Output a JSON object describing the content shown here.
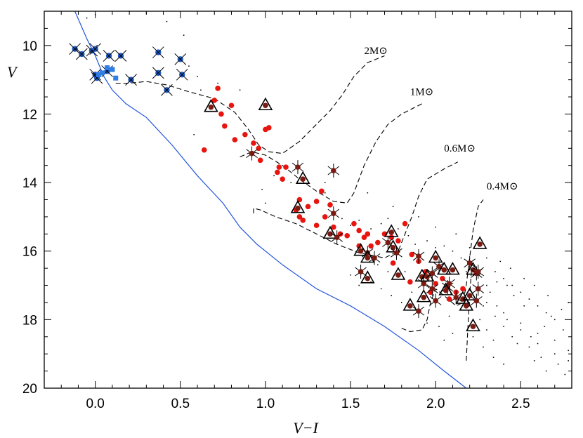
{
  "chart_data": {
    "type": "scatter",
    "title": "",
    "xlabel": "V−I",
    "ylabel": "V",
    "xlim": [
      -0.3,
      2.8
    ],
    "ylim": [
      20,
      9
    ],
    "y_inverted": true,
    "grid": false,
    "x_ticks": [
      {
        "value": 0.0,
        "label": "0.0"
      },
      {
        "value": 0.5,
        "label": "0.5"
      },
      {
        "value": 1.0,
        "label": "1.0"
      },
      {
        "value": 1.5,
        "label": "1.5"
      },
      {
        "value": 2.0,
        "label": "2.0"
      },
      {
        "value": 2.5,
        "label": "2.5"
      }
    ],
    "y_ticks": [
      {
        "value": 10,
        "label": "10"
      },
      {
        "value": 12,
        "label": "12"
      },
      {
        "value": 14,
        "label": "14"
      },
      {
        "value": 16,
        "label": "16"
      },
      {
        "value": 18,
        "label": "18"
      },
      {
        "value": 20,
        "label": "20"
      }
    ],
    "colors": {
      "field_dots": "#000000",
      "red_points": "#e8140f",
      "blue_points": "#1e5bc6",
      "blue_squares": "#2f7ee8",
      "zams_line": "#2255dd",
      "dark_points": "#7a1a12",
      "tracks": "#000000"
    },
    "track_labels": [
      {
        "text": "2M⊙",
        "x": 1.58,
        "y": 10.25
      },
      {
        "text": "1M⊙",
        "x": 1.85,
        "y": 11.45
      },
      {
        "text": "0.6M⊙",
        "x": 2.05,
        "y": 13.1
      },
      {
        "text": "0.4M⊙",
        "x": 2.3,
        "y": 14.2
      }
    ],
    "zams_curve": [
      [
        -0.12,
        9.0
      ],
      [
        -0.05,
        9.8
      ],
      [
        0.0,
        10.3
      ],
      [
        0.05,
        10.9
      ],
      [
        0.1,
        11.3
      ],
      [
        0.18,
        11.7
      ],
      [
        0.3,
        12.1
      ],
      [
        0.45,
        12.9
      ],
      [
        0.6,
        13.8
      ],
      [
        0.75,
        14.6
      ],
      [
        0.85,
        15.3
      ],
      [
        0.95,
        15.8
      ],
      [
        1.1,
        16.4
      ],
      [
        1.3,
        17.1
      ],
      [
        1.5,
        17.6
      ],
      [
        1.7,
        18.2
      ],
      [
        1.9,
        18.9
      ],
      [
        2.05,
        19.5
      ],
      [
        2.18,
        20.0
      ]
    ],
    "tracks": [
      {
        "name": "2M⊙",
        "points": [
          [
            0.12,
            11.1
          ],
          [
            0.2,
            11.1
          ],
          [
            0.3,
            11.05
          ],
          [
            0.42,
            11.15
          ],
          [
            0.55,
            11.35
          ],
          [
            0.7,
            11.55
          ],
          [
            0.82,
            11.95
          ],
          [
            0.9,
            12.45
          ],
          [
            0.96,
            12.9
          ],
          [
            1.02,
            13.1
          ],
          [
            1.1,
            13.15
          ],
          [
            1.2,
            12.8
          ],
          [
            1.3,
            12.3
          ],
          [
            1.38,
            11.9
          ],
          [
            1.45,
            11.45
          ],
          [
            1.52,
            10.9
          ],
          [
            1.6,
            10.5
          ],
          [
            1.7,
            10.3
          ]
        ]
      },
      {
        "name": "1M⊙",
        "points": [
          [
            0.85,
            13.25
          ],
          [
            0.92,
            13.1
          ],
          [
            1.0,
            13.2
          ],
          [
            1.1,
            13.5
          ],
          [
            1.2,
            13.9
          ],
          [
            1.3,
            14.25
          ],
          [
            1.4,
            14.55
          ],
          [
            1.48,
            14.6
          ],
          [
            1.52,
            14.3
          ],
          [
            1.58,
            13.5
          ],
          [
            1.65,
            12.8
          ],
          [
            1.72,
            12.3
          ],
          [
            1.8,
            12.0
          ],
          [
            1.92,
            11.7
          ]
        ]
      },
      {
        "name": "0.6M⊙",
        "points": [
          [
            0.93,
            14.9
          ],
          [
            0.93,
            14.75
          ],
          [
            0.97,
            14.8
          ],
          [
            1.06,
            15.0
          ],
          [
            1.18,
            15.2
          ],
          [
            1.3,
            15.5
          ],
          [
            1.42,
            15.8
          ],
          [
            1.55,
            16.05
          ],
          [
            1.7,
            16.2
          ],
          [
            1.78,
            16.0
          ],
          [
            1.82,
            15.5
          ],
          [
            1.86,
            15.0
          ],
          [
            1.9,
            14.4
          ],
          [
            1.95,
            13.9
          ],
          [
            2.05,
            13.6
          ],
          [
            2.13,
            13.4
          ]
        ]
      },
      {
        "name": "0.4M⊙",
        "points": [
          [
            1.8,
            18.25
          ],
          [
            1.85,
            18.35
          ],
          [
            1.92,
            18.3
          ],
          [
            1.95,
            18.0
          ],
          [
            1.97,
            17.5
          ],
          [
            2.0,
            17.1
          ],
          [
            2.05,
            17.3
          ],
          [
            2.12,
            17.6
          ],
          [
            2.16,
            17.5
          ],
          [
            2.18,
            17.0
          ],
          [
            2.2,
            16.2
          ],
          [
            2.22,
            15.4
          ],
          [
            2.25,
            14.7
          ],
          [
            2.28,
            14.5
          ]
        ]
      },
      {
        "name": "0.4M⊙-lower",
        "points": [
          [
            2.18,
            19.2
          ],
          [
            2.19,
            18.2
          ],
          [
            2.2,
            17.3
          ],
          [
            2.21,
            16.6
          ]
        ]
      }
    ],
    "series": [
      {
        "values": [
          [
            -0.12,
            10.1
          ],
          [
            -0.08,
            10.25
          ],
          [
            -0.02,
            10.15
          ],
          [
            0.0,
            10.1
          ],
          [
            0.08,
            10.3
          ],
          [
            0.15,
            10.3
          ],
          [
            0.37,
            10.2
          ],
          [
            0.5,
            10.4
          ],
          [
            0.0,
            10.85
          ],
          [
            0.07,
            10.75
          ],
          [
            0.21,
            11.0
          ],
          [
            0.37,
            10.8
          ],
          [
            0.42,
            11.3
          ],
          [
            0.51,
            10.85
          ],
          [
            0.01,
            10.95
          ]
        ]
      },
      {
        "values": [
          [
            0.04,
            10.8
          ],
          [
            0.07,
            10.65
          ],
          [
            0.1,
            10.7
          ],
          [
            0.12,
            10.95
          ],
          [
            0.02,
            10.85
          ]
        ]
      },
      {
        "values": [
          [
            0.64,
            13.05
          ],
          [
            0.7,
            11.6
          ],
          [
            0.72,
            11.25
          ],
          [
            0.74,
            12.0
          ],
          [
            0.76,
            12.35
          ],
          [
            0.8,
            11.75
          ],
          [
            0.82,
            12.75
          ],
          [
            0.88,
            12.6
          ],
          [
            0.93,
            12.85
          ],
          [
            0.96,
            13.0
          ],
          [
            0.97,
            13.35
          ],
          [
            1.0,
            12.45
          ],
          [
            1.02,
            12.4
          ],
          [
            1.07,
            13.7
          ],
          [
            1.08,
            13.55
          ],
          [
            1.1,
            13.9
          ],
          [
            1.12,
            13.55
          ],
          [
            1.18,
            14.8
          ],
          [
            1.2,
            14.5
          ],
          [
            1.22,
            15.1
          ],
          [
            1.25,
            14.7
          ],
          [
            1.3,
            14.55
          ],
          [
            1.33,
            14.25
          ],
          [
            1.35,
            15.0
          ],
          [
            1.38,
            14.65
          ],
          [
            1.4,
            15.3
          ],
          [
            1.44,
            15.5
          ],
          [
            1.48,
            15.55
          ],
          [
            1.52,
            15.2
          ],
          [
            1.55,
            15.4
          ],
          [
            1.58,
            15.6
          ],
          [
            1.6,
            15.5
          ],
          [
            1.62,
            15.85
          ],
          [
            1.66,
            15.75
          ],
          [
            1.7,
            15.5
          ],
          [
            1.74,
            15.6
          ],
          [
            1.78,
            15.7
          ],
          [
            1.82,
            15.2
          ],
          [
            1.86,
            16.1
          ],
          [
            1.9,
            16.3
          ],
          [
            1.94,
            16.6
          ],
          [
            1.97,
            17.2
          ],
          [
            2.0,
            16.95
          ],
          [
            2.04,
            16.8
          ],
          [
            2.08,
            17.4
          ],
          [
            2.12,
            17.2
          ],
          [
            2.16,
            17.1
          ],
          [
            1.2,
            15.0
          ],
          [
            1.3,
            15.25
          ],
          [
            1.55,
            15.85
          ],
          [
            1.75,
            16.35
          ],
          [
            1.85,
            16.9
          ]
        ]
      },
      {
        "values": [
          [
            0.68,
            11.8
          ],
          [
            0.92,
            13.15
          ],
          [
            1.0,
            11.75
          ],
          [
            1.19,
            13.55
          ],
          [
            1.22,
            13.9
          ],
          [
            1.4,
            13.65
          ],
          [
            1.19,
            14.75
          ],
          [
            1.4,
            14.9
          ],
          [
            1.38,
            15.5
          ],
          [
            1.42,
            15.6
          ],
          [
            1.56,
            16.0
          ],
          [
            1.6,
            16.05
          ],
          [
            1.6,
            16.2
          ],
          [
            1.64,
            16.2
          ],
          [
            1.74,
            15.45
          ],
          [
            1.72,
            15.75
          ],
          [
            1.75,
            15.9
          ],
          [
            1.77,
            16.05
          ],
          [
            1.78,
            16.7
          ],
          [
            1.56,
            16.6
          ],
          [
            1.6,
            16.8
          ],
          [
            1.9,
            16.15
          ],
          [
            1.92,
            16.75
          ],
          [
            1.93,
            16.95
          ],
          [
            1.95,
            16.75
          ],
          [
            1.98,
            17.1
          ],
          [
            2.0,
            16.2
          ],
          [
            2.02,
            16.45
          ],
          [
            2.05,
            16.55
          ],
          [
            2.07,
            17.05
          ],
          [
            2.1,
            16.55
          ],
          [
            2.08,
            16.95
          ],
          [
            1.93,
            17.35
          ],
          [
            2.0,
            17.45
          ],
          [
            2.06,
            17.15
          ],
          [
            2.12,
            17.35
          ],
          [
            2.16,
            17.4
          ],
          [
            2.2,
            16.35
          ],
          [
            2.22,
            16.55
          ],
          [
            2.24,
            16.65
          ],
          [
            2.26,
            15.8
          ],
          [
            2.25,
            16.6
          ],
          [
            2.2,
            17.3
          ],
          [
            2.24,
            17.45
          ],
          [
            1.85,
            17.6
          ],
          [
            1.9,
            17.75
          ],
          [
            2.22,
            18.2
          ],
          [
            2.25,
            17.1
          ],
          [
            2.18,
            17.6
          ],
          [
            1.98,
            16.65
          ]
        ]
      }
    ],
    "field_stars": [
      [
        1.45,
        15.05
      ],
      [
        1.5,
        15.25
      ],
      [
        1.55,
        15.1
      ],
      [
        1.62,
        15.35
      ],
      [
        1.68,
        15.2
      ],
      [
        1.72,
        15.05
      ],
      [
        1.78,
        15.35
      ],
      [
        1.84,
        15.55
      ],
      [
        1.88,
        15.8
      ],
      [
        1.95,
        15.7
      ],
      [
        2.0,
        15.9
      ],
      [
        2.05,
        15.85
      ],
      [
        2.1,
        16.0
      ],
      [
        2.15,
        16.2
      ],
      [
        2.2,
        15.9
      ],
      [
        2.3,
        16.2
      ],
      [
        2.35,
        16.6
      ],
      [
        2.4,
        16.8
      ],
      [
        2.45,
        17.0
      ],
      [
        2.5,
        17.2
      ],
      [
        2.55,
        17.4
      ],
      [
        2.6,
        17.6
      ],
      [
        2.65,
        17.8
      ],
      [
        2.7,
        18.0
      ],
      [
        2.75,
        18.3
      ],
      [
        2.4,
        17.8
      ],
      [
        2.5,
        18.1
      ],
      [
        2.6,
        18.4
      ],
      [
        2.7,
        18.6
      ],
      [
        2.78,
        18.9
      ],
      [
        2.3,
        17.5
      ],
      [
        2.35,
        17.9
      ],
      [
        2.45,
        18.5
      ],
      [
        2.55,
        18.8
      ],
      [
        2.62,
        19.1
      ],
      [
        2.72,
        19.3
      ],
      [
        2.76,
        19.6
      ],
      [
        2.65,
        19.5
      ],
      [
        2.58,
        19.2
      ],
      [
        2.52,
        17.6
      ],
      [
        2.46,
        17.3
      ],
      [
        2.42,
        17.0
      ],
      [
        2.36,
        16.9
      ],
      [
        2.32,
        17.2
      ],
      [
        2.28,
        17.6
      ],
      [
        2.26,
        18.0
      ],
      [
        2.3,
        18.3
      ],
      [
        2.34,
        18.6
      ],
      [
        2.4,
        18.2
      ],
      [
        2.48,
        18.7
      ],
      [
        2.56,
        18.5
      ],
      [
        2.64,
        18.2
      ],
      [
        2.68,
        17.9
      ],
      [
        2.74,
        17.7
      ],
      [
        2.78,
        17.5
      ],
      [
        2.66,
        17.3
      ],
      [
        2.58,
        17.0
      ],
      [
        2.52,
        16.8
      ],
      [
        2.44,
        16.5
      ],
      [
        2.38,
        16.3
      ],
      [
        1.5,
        16.7
      ],
      [
        1.55,
        17.0
      ],
      [
        1.62,
        16.9
      ],
      [
        1.68,
        17.1
      ],
      [
        1.74,
        17.3
      ],
      [
        1.8,
        17.5
      ],
      [
        1.86,
        17.2
      ],
      [
        1.82,
        16.6
      ],
      [
        1.66,
        16.4
      ],
      [
        1.72,
        16.6
      ],
      [
        1.95,
        18.1
      ],
      [
        2.02,
        18.2
      ],
      [
        2.08,
        17.9
      ],
      [
        2.1,
        18.4
      ],
      [
        2.05,
        18.6
      ],
      [
        1.3,
        14.5
      ],
      [
        1.35,
        14.3
      ],
      [
        1.15,
        14.0
      ],
      [
        1.05,
        13.8
      ],
      [
        0.98,
        14.2
      ],
      [
        1.0,
        14.6
      ],
      [
        0.55,
        10.6
      ],
      [
        0.6,
        10.9
      ],
      [
        0.62,
        11.3
      ],
      [
        0.72,
        11.1
      ],
      [
        0.2,
        9.0
      ],
      [
        0.3,
        9.05
      ],
      [
        0.42,
        9.3
      ],
      [
        0.52,
        9.7
      ],
      [
        0.0,
        9.1
      ],
      [
        -0.05,
        9.2
      ],
      [
        0.58,
        12.6
      ],
      [
        0.85,
        11.3
      ],
      [
        1.35,
        14.0
      ],
      [
        1.6,
        14.3
      ],
      [
        1.75,
        14.7
      ],
      [
        1.9,
        15.0
      ],
      [
        2.0,
        15.3
      ],
      [
        2.12,
        15.5
      ],
      [
        2.18,
        16.6
      ],
      [
        2.3,
        17.0
      ],
      [
        2.36,
        17.6
      ],
      [
        2.42,
        18.0
      ],
      [
        2.5,
        18.3
      ],
      [
        2.6,
        18.7
      ],
      [
        2.7,
        19.0
      ],
      [
        2.78,
        19.2
      ],
      [
        2.22,
        18.5
      ],
      [
        2.28,
        18.8
      ],
      [
        2.34,
        19.1
      ],
      [
        2.4,
        19.3
      ]
    ]
  }
}
